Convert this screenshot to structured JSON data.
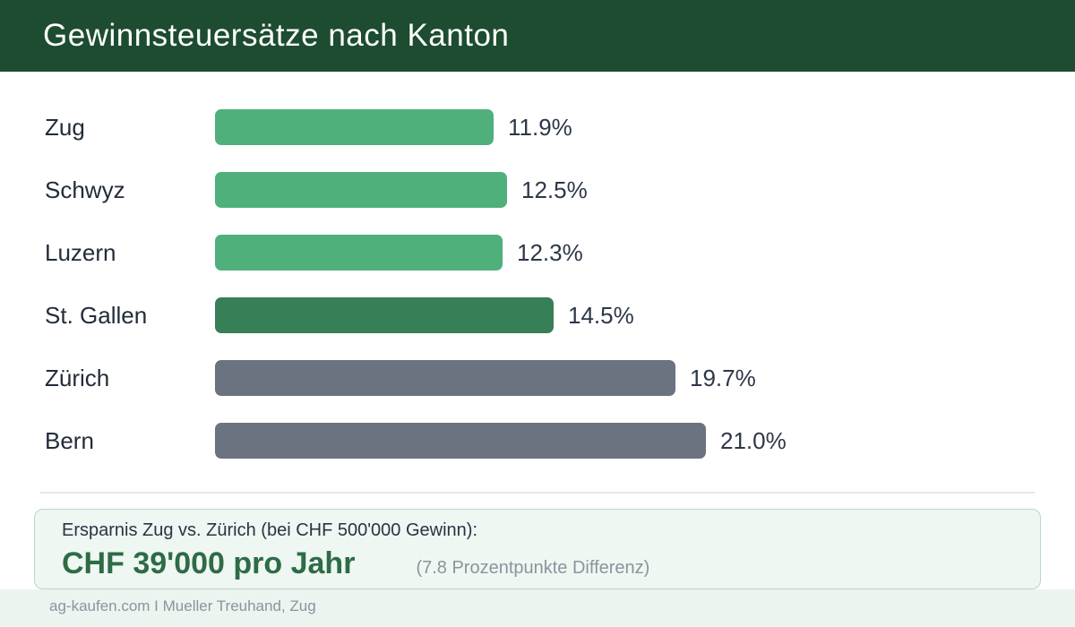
{
  "header": {
    "title": "Gewinnsteuersätze nach Kanton"
  },
  "chart_data": {
    "type": "bar",
    "orientation": "horizontal",
    "title": "Gewinnsteuersätze nach Kanton",
    "categories": [
      "Zug",
      "Schwyz",
      "Luzern",
      "St. Gallen",
      "Zürich",
      "Bern"
    ],
    "values": [
      11.9,
      12.5,
      12.3,
      14.5,
      19.7,
      21.0
    ],
    "value_labels": [
      "11.9%",
      "12.5%",
      "12.3%",
      "14.5%",
      "19.7%",
      "21.0%"
    ],
    "bar_colors": [
      "#4fb07c",
      "#4fb07c",
      "#4fb07c",
      "#377f57",
      "#6b7280",
      "#6b7280"
    ],
    "xlim": [
      0,
      21.0
    ],
    "grid": false,
    "legend": "none"
  },
  "savings_box": {
    "line1": "Ersparnis Zug vs. Zürich (bei CHF 500'000 Gewinn):",
    "amount": "CHF 39'000 pro Jahr",
    "note": "(7.8 Prozentpunkte Differenz)"
  },
  "footer": {
    "text": "ag-kaufen.com I Mueller Treuhand, Zug"
  },
  "colors": {
    "header_bg": "#1d4c30",
    "bar_green": "#4fb07c",
    "bar_dark_green": "#377f57",
    "bar_gray": "#6b7280",
    "savings_green": "#2e6b46",
    "box_bg": "#eef7f2",
    "box_border": "#b8d8c7",
    "footer_bg": "#ecf4ef"
  }
}
